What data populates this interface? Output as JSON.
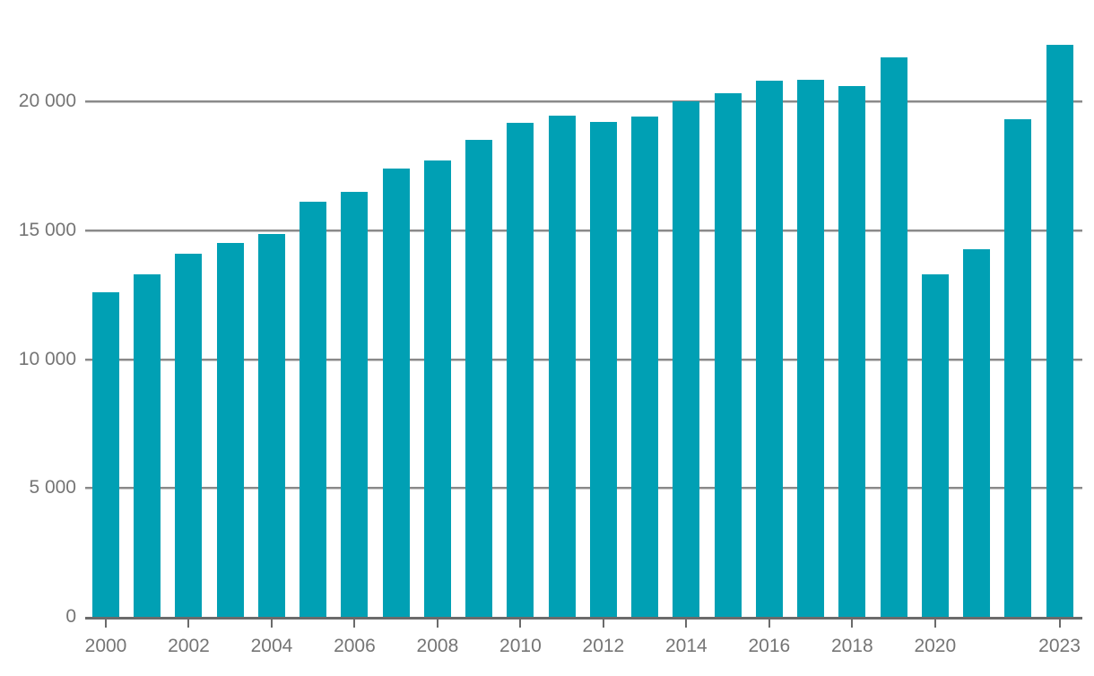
{
  "chart_data": {
    "type": "bar",
    "title": "",
    "xlabel": "",
    "ylabel": "",
    "categories": [
      "2000",
      "2001",
      "2002",
      "2003",
      "2004",
      "2005",
      "2006",
      "2007",
      "2008",
      "2009",
      "2010",
      "2011",
      "2012",
      "2013",
      "2014",
      "2015",
      "2016",
      "2017",
      "2018",
      "2019",
      "2020",
      "2021",
      "2022",
      "2023"
    ],
    "values": [
      12600,
      13300,
      14100,
      14500,
      14850,
      16100,
      16500,
      17400,
      17700,
      18500,
      19150,
      19450,
      19200,
      19400,
      20000,
      20300,
      20800,
      20850,
      20600,
      21700,
      13300,
      14250,
      19300,
      22200
    ],
    "ylim": [
      0,
      23000
    ],
    "grid": "horizontal-behind-bars",
    "legend": "none",
    "y_axis": {
      "tick_values": [
        0,
        5000,
        10000,
        15000,
        20000
      ],
      "tick_labels": [
        "0",
        "5 000",
        "10 000",
        "15 000",
        "20 000"
      ]
    },
    "x_axis": {
      "tick_years": [
        2000,
        2002,
        2004,
        2006,
        2008,
        2010,
        2012,
        2014,
        2016,
        2018,
        2020,
        2023
      ],
      "tick_labels": [
        "2000",
        "2002",
        "2004",
        "2006",
        "2008",
        "2010",
        "2012",
        "2014",
        "2016",
        "2018",
        "2020",
        "2023"
      ]
    },
    "colors": {
      "bar": "#00a0b4",
      "gridline": "#8a8a8a",
      "gridline_shadow": "#c6c6c6",
      "axis": "#6b6b6b",
      "label": "#757575",
      "background": "#ffffff"
    }
  }
}
